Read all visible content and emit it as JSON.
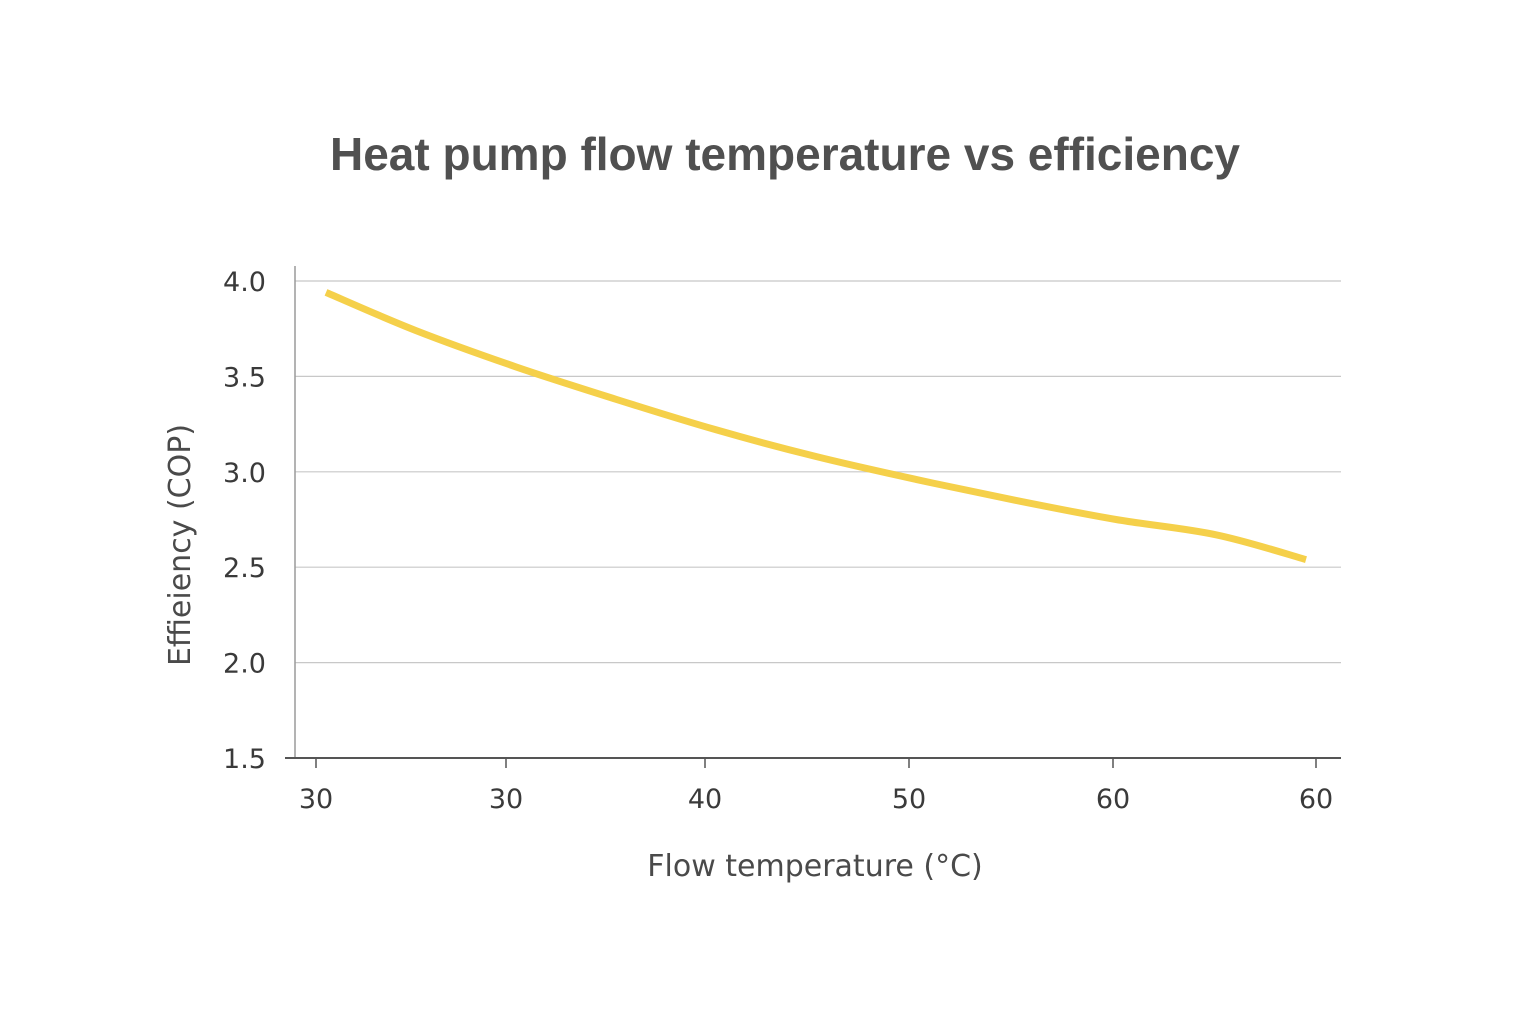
{
  "chart_data": {
    "type": "line",
    "title": "Heat pump flow temperature vs efficiency",
    "xlabel": "Flow temperature (°C)",
    "ylabel": "Effieiency (COP)",
    "x_tick_labels": [
      "30",
      "30",
      "40",
      "50",
      "60",
      "60"
    ],
    "y_ticks": [
      1.5,
      2.0,
      2.5,
      3.0,
      3.5,
      4.0
    ],
    "y_tick_labels": [
      "1.5",
      "2.0",
      "2.5",
      "3.0",
      "3.5",
      "4.0"
    ],
    "ylim": [
      1.5,
      4.0
    ],
    "grid": "horizontal",
    "legend": "none",
    "series": [
      {
        "color": "#F5D04A",
        "points": [
          {
            "x": 30.5,
            "y": 3.94
          },
          {
            "x": 35,
            "y": 3.74
          },
          {
            "x": 40,
            "y": 3.55
          },
          {
            "x": 45,
            "y": 3.38
          },
          {
            "x": 50,
            "y": 3.22
          },
          {
            "x": 55,
            "y": 3.08
          },
          {
            "x": 60,
            "y": 2.96
          },
          {
            "x": 65,
            "y": 2.85
          },
          {
            "x": 70,
            "y": 2.75
          },
          {
            "x": 75,
            "y": 2.67
          },
          {
            "x": 79.5,
            "y": 2.54
          }
        ]
      }
    ]
  }
}
